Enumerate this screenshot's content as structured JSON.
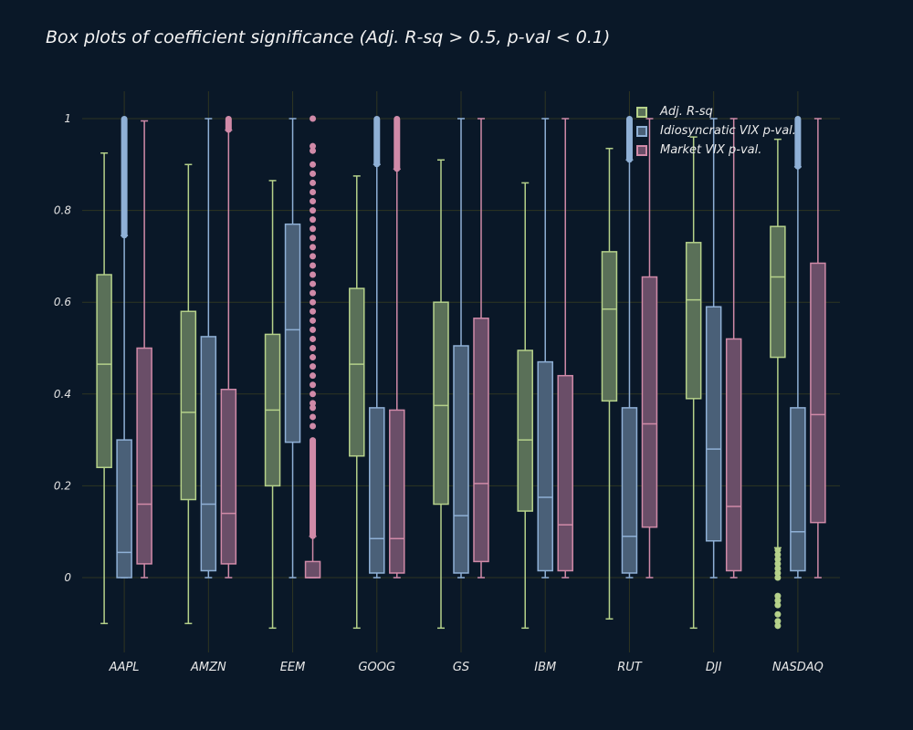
{
  "chart_data": {
    "type": "box",
    "title": "Box plots of coefficient significance (Adj. R-sq > 0.5, p-val < 0.1)",
    "xlabel": "",
    "ylabel": "",
    "ylim": [
      -0.15,
      1.06
    ],
    "yticks": [
      0,
      0.2,
      0.4,
      0.6,
      0.8,
      1
    ],
    "ytick_labels": [
      "0",
      "0.2",
      "0.4",
      "0.6",
      "0.8",
      "1"
    ],
    "grid": true,
    "legend_position": "top-right",
    "categories": [
      "AAPL",
      "AMZN",
      "EEM",
      "GOOG",
      "GS",
      "IBM",
      "RUT",
      "DJI",
      "NASDAQ"
    ],
    "series": [
      {
        "name": "Adj. R-sq",
        "color": "#b5d18a",
        "fill": "#5a7058",
        "boxes": [
          {
            "low": -0.1,
            "q1": 0.24,
            "median": 0.465,
            "q3": 0.66,
            "high": 0.925
          },
          {
            "low": -0.1,
            "q1": 0.17,
            "median": 0.36,
            "q3": 0.58,
            "high": 0.9
          },
          {
            "low": -0.11,
            "q1": 0.2,
            "median": 0.365,
            "q3": 0.53,
            "high": 0.865
          },
          {
            "low": -0.11,
            "q1": 0.265,
            "median": 0.465,
            "q3": 0.63,
            "high": 0.875
          },
          {
            "low": -0.11,
            "q1": 0.16,
            "median": 0.375,
            "q3": 0.6,
            "high": 0.91
          },
          {
            "low": -0.11,
            "q1": 0.145,
            "median": 0.3,
            "q3": 0.495,
            "high": 0.86
          },
          {
            "low": -0.09,
            "q1": 0.385,
            "median": 0.585,
            "q3": 0.71,
            "high": 0.935
          },
          {
            "low": -0.11,
            "q1": 0.39,
            "median": 0.605,
            "q3": 0.73,
            "high": 0.96
          },
          {
            "low": 0.065,
            "q1": 0.48,
            "median": 0.655,
            "q3": 0.765,
            "high": 0.955,
            "outliers": [
              0.06,
              0.05,
              0.04,
              0.03,
              0.02,
              0.01,
              0.0,
              -0.04,
              -0.05,
              -0.06,
              -0.08,
              -0.095,
              -0.105
            ]
          }
        ]
      },
      {
        "name": "Idiosyncratic VIX p-val.",
        "color": "#8fb0d6",
        "fill": "#4a6078",
        "boxes": [
          {
            "low": 0,
            "q1": 0.0,
            "median": 0.055,
            "q3": 0.3,
            "high": 0.745,
            "outlier_range": [
              0.745,
              1.0
            ]
          },
          {
            "low": 0,
            "q1": 0.015,
            "median": 0.16,
            "q3": 0.525,
            "high": 1.0
          },
          {
            "low": 0,
            "q1": 0.295,
            "median": 0.54,
            "q3": 0.77,
            "high": 1.0
          },
          {
            "low": 0,
            "q1": 0.01,
            "median": 0.085,
            "q3": 0.37,
            "high": 0.9,
            "outlier_range": [
              0.9,
              1.0
            ]
          },
          {
            "low": 0,
            "q1": 0.01,
            "median": 0.135,
            "q3": 0.505,
            "high": 1.0
          },
          {
            "low": 0,
            "q1": 0.015,
            "median": 0.175,
            "q3": 0.47,
            "high": 1.0
          },
          {
            "low": 0,
            "q1": 0.01,
            "median": 0.09,
            "q3": 0.37,
            "high": 0.91,
            "outlier_range": [
              0.91,
              1.0
            ]
          },
          {
            "low": 0,
            "q1": 0.08,
            "median": 0.28,
            "q3": 0.59,
            "high": 1.0
          },
          {
            "low": 0,
            "q1": 0.015,
            "median": 0.1,
            "q3": 0.37,
            "high": 0.895,
            "outlier_range": [
              0.895,
              1.0
            ]
          }
        ]
      },
      {
        "name": "Market VIX p-val.",
        "color": "#d08aa8",
        "fill": "#6a4e68",
        "boxes": [
          {
            "low": 0,
            "q1": 0.03,
            "median": 0.16,
            "q3": 0.5,
            "high": 0.995
          },
          {
            "low": 0,
            "q1": 0.03,
            "median": 0.14,
            "q3": 0.41,
            "high": 0.975,
            "outlier_range": [
              0.975,
              1.0
            ]
          },
          {
            "low": 0,
            "q1": 0.0,
            "median": 0.0,
            "q3": 0.035,
            "high": 0.09,
            "outlier_range": [
              0.09,
              0.3
            ],
            "outliers": [
              0.33,
              0.35,
              0.37,
              0.38,
              0.4,
              0.42,
              0.44,
              0.46,
              0.48,
              0.5,
              0.52,
              0.54,
              0.56,
              0.58,
              0.6,
              0.62,
              0.64,
              0.66,
              0.68,
              0.7,
              0.72,
              0.74,
              0.76,
              0.78,
              0.8,
              0.82,
              0.84,
              0.86,
              0.88,
              0.9,
              0.93,
              0.94,
              1.0
            ]
          },
          {
            "low": 0,
            "q1": 0.01,
            "median": 0.085,
            "q3": 0.365,
            "high": 0.89,
            "outlier_range": [
              0.89,
              1.0
            ]
          },
          {
            "low": 0,
            "q1": 0.035,
            "median": 0.205,
            "q3": 0.565,
            "high": 1.0
          },
          {
            "low": 0,
            "q1": 0.015,
            "median": 0.115,
            "q3": 0.44,
            "high": 1.0
          },
          {
            "low": 0,
            "q1": 0.11,
            "median": 0.335,
            "q3": 0.655,
            "high": 1.0
          },
          {
            "low": 0,
            "q1": 0.015,
            "median": 0.155,
            "q3": 0.52,
            "high": 1.0
          },
          {
            "low": 0,
            "q1": 0.12,
            "median": 0.355,
            "q3": 0.685,
            "high": 1.0
          }
        ]
      }
    ]
  }
}
